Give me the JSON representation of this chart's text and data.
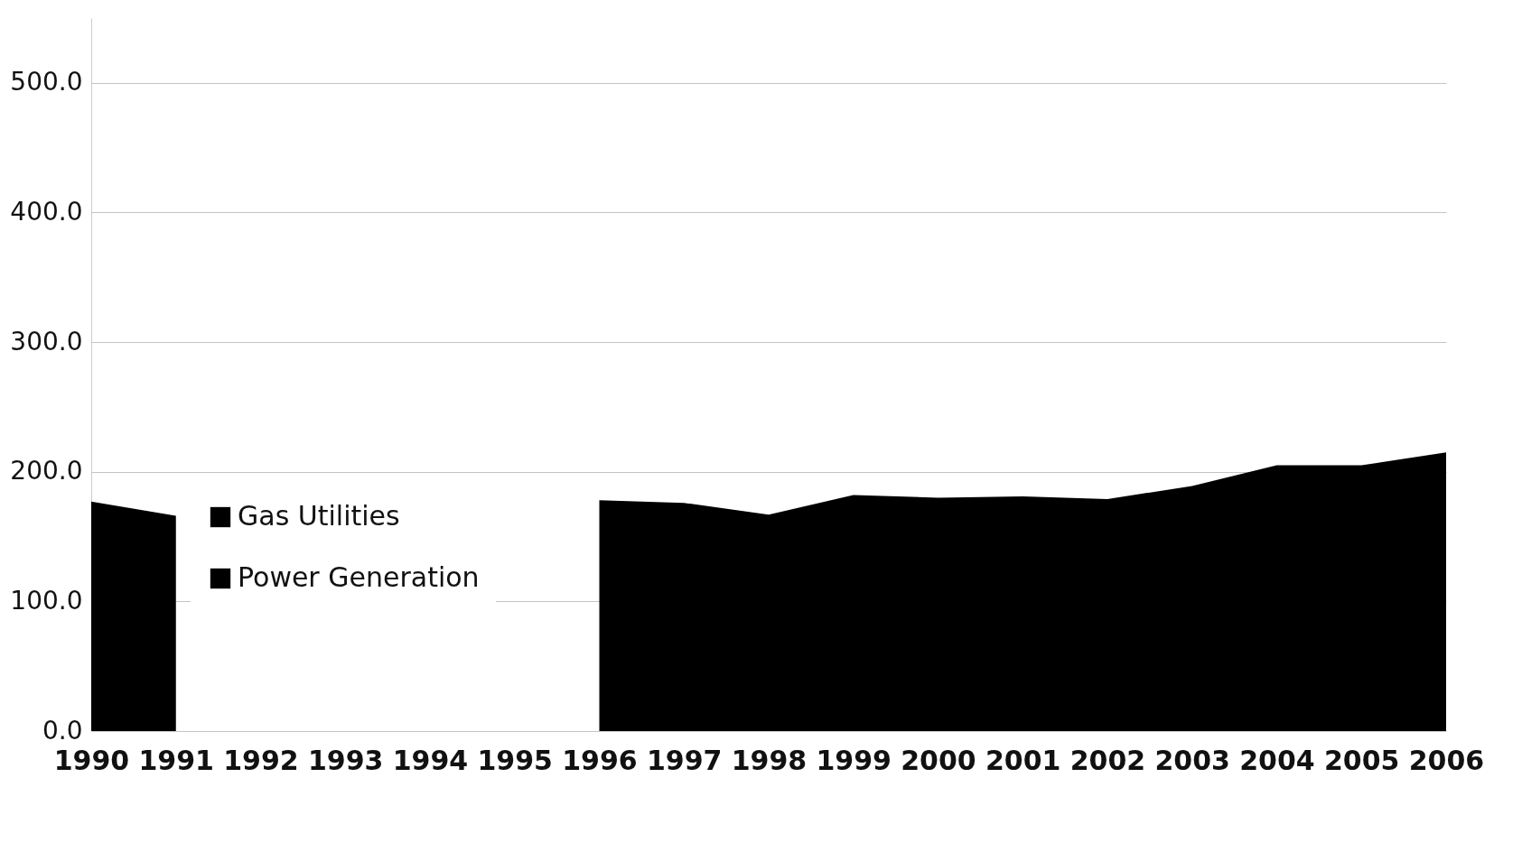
{
  "chart_data": {
    "type": "area",
    "categories": [
      "1990",
      "1991",
      "1992",
      "1993",
      "1994",
      "1995",
      "1996",
      "1997",
      "1998",
      "1999",
      "2000",
      "2001",
      "2002",
      "2003",
      "2004",
      "2005",
      "2006"
    ],
    "series": [
      {
        "name": "Gas Utilities",
        "color": "#000000",
        "values": [
          null,
          null,
          null,
          null,
          null,
          null,
          null,
          null,
          null,
          null,
          null,
          null,
          null,
          null,
          null,
          null,
          null
        ]
      },
      {
        "name": "Power Generation",
        "color": "#000000",
        "values": [
          177,
          166,
          null,
          null,
          null,
          null,
          178,
          176,
          167,
          182,
          180,
          181,
          179,
          189,
          205,
          205,
          215
        ]
      }
    ],
    "ylim": [
      0,
      550
    ],
    "yticks": [
      {
        "value": 0,
        "label": "0.0"
      },
      {
        "value": 100,
        "label": "100.0"
      },
      {
        "value": 200,
        "label": "200.0"
      },
      {
        "value": 300,
        "label": "300.0"
      },
      {
        "value": 400,
        "label": "400.0"
      },
      {
        "value": 500,
        "label": "500.0"
      }
    ],
    "grid": "y",
    "legend": "left"
  }
}
